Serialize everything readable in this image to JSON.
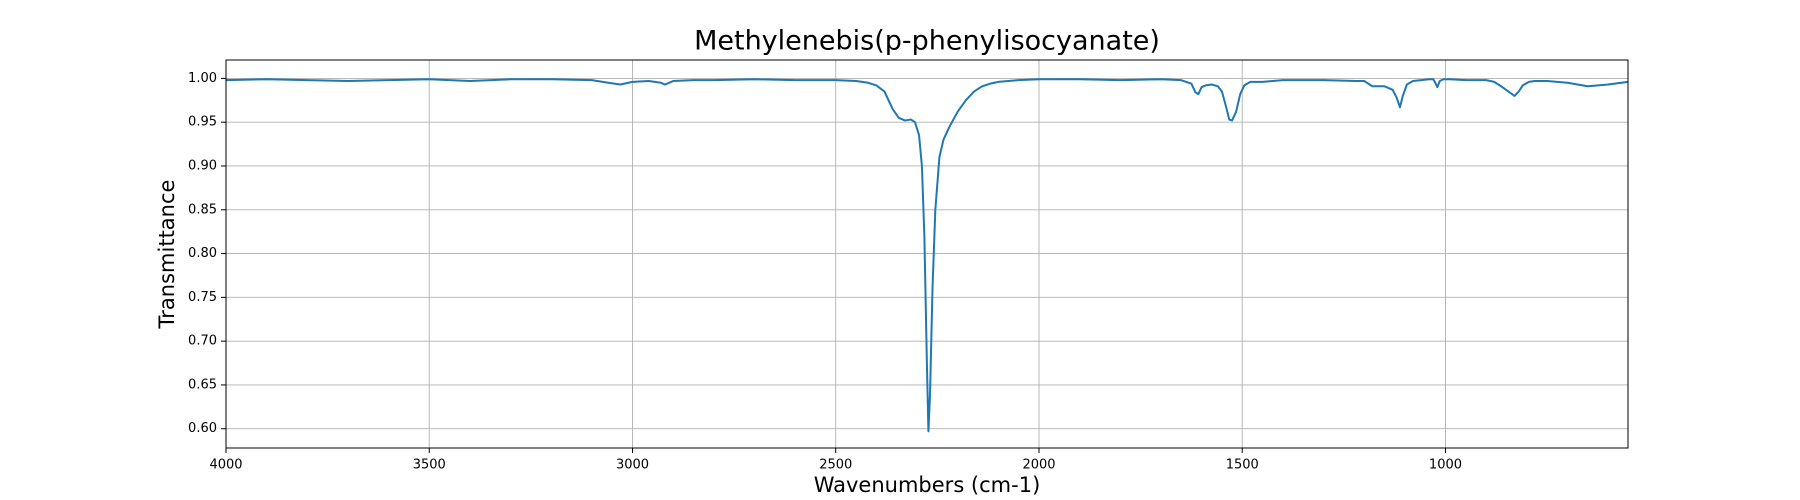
{
  "chart_data": {
    "type": "line",
    "title": "Methylenebis(p-phenylisocyanate)",
    "xlabel": "Wavenumbers (cm-1)",
    "ylabel": "Transmittance",
    "color": "#1f77b4",
    "grid": true,
    "xlim": [
      4000,
      551
    ],
    "ylim": [
      0.578,
      1.021
    ],
    "xticks": [
      4000,
      3500,
      3000,
      2500,
      2000,
      1500,
      1000
    ],
    "yticks": [
      {
        "value": 0.6,
        "label": "0.60"
      },
      {
        "value": 0.65,
        "label": "0.65"
      },
      {
        "value": 0.7,
        "label": "0.70"
      },
      {
        "value": 0.75,
        "label": "0.75"
      },
      {
        "value": 0.8,
        "label": "0.80"
      },
      {
        "value": 0.85,
        "label": "0.85"
      },
      {
        "value": 0.9,
        "label": "0.90"
      },
      {
        "value": 0.95,
        "label": "0.95"
      },
      {
        "value": 1.0,
        "label": "1.00"
      }
    ],
    "x": [
      4000,
      3900,
      3800,
      3700,
      3600,
      3500,
      3400,
      3300,
      3200,
      3100,
      3060,
      3030,
      3000,
      2960,
      2930,
      2920,
      2900,
      2850,
      2800,
      2700,
      2600,
      2500,
      2450,
      2420,
      2400,
      2380,
      2360,
      2345,
      2330,
      2315,
      2305,
      2295,
      2288,
      2282,
      2276,
      2272,
      2268,
      2262,
      2255,
      2245,
      2235,
      2220,
      2200,
      2180,
      2160,
      2140,
      2120,
      2100,
      2050,
      2000,
      1900,
      1800,
      1700,
      1650,
      1625,
      1615,
      1608,
      1600,
      1590,
      1575,
      1560,
      1550,
      1540,
      1532,
      1525,
      1515,
      1505,
      1495,
      1480,
      1450,
      1400,
      1300,
      1220,
      1200,
      1190,
      1180,
      1150,
      1130,
      1120,
      1112,
      1105,
      1095,
      1080,
      1060,
      1040,
      1030,
      1024,
      1020,
      1014,
      1005,
      990,
      950,
      900,
      880,
      860,
      845,
      830,
      820,
      810,
      795,
      780,
      750,
      700,
      650,
      600,
      551
    ],
    "values": [
      0.998,
      0.999,
      0.998,
      0.997,
      0.998,
      0.999,
      0.997,
      0.999,
      0.999,
      0.998,
      0.995,
      0.993,
      0.996,
      0.997,
      0.995,
      0.993,
      0.997,
      0.998,
      0.998,
      0.999,
      0.998,
      0.998,
      0.997,
      0.995,
      0.992,
      0.985,
      0.965,
      0.955,
      0.952,
      0.953,
      0.95,
      0.935,
      0.9,
      0.82,
      0.68,
      0.597,
      0.64,
      0.76,
      0.85,
      0.91,
      0.93,
      0.945,
      0.962,
      0.975,
      0.985,
      0.991,
      0.994,
      0.996,
      0.998,
      0.999,
      0.999,
      0.998,
      0.999,
      0.998,
      0.994,
      0.984,
      0.982,
      0.99,
      0.992,
      0.993,
      0.991,
      0.985,
      0.968,
      0.953,
      0.952,
      0.962,
      0.982,
      0.992,
      0.996,
      0.996,
      0.998,
      0.998,
      0.997,
      0.997,
      0.994,
      0.991,
      0.991,
      0.987,
      0.978,
      0.967,
      0.98,
      0.993,
      0.997,
      0.998,
      0.999,
      0.999,
      0.994,
      0.99,
      0.997,
      0.999,
      0.999,
      0.998,
      0.998,
      0.996,
      0.99,
      0.985,
      0.98,
      0.985,
      0.992,
      0.996,
      0.997,
      0.997,
      0.995,
      0.991,
      0.993,
      0.996
    ]
  }
}
